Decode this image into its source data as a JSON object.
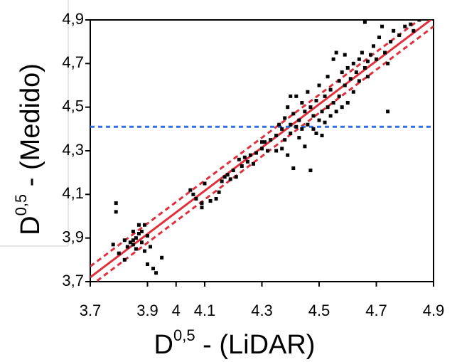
{
  "chart_data": {
    "type": "scatter",
    "xlabel": {
      "base": "D",
      "sup": "0,5",
      "rest": " - (LiDAR)"
    },
    "ylabel": {
      "base": "D",
      "sup": "0,5",
      "rest": " - (Medido)"
    },
    "xlim": [
      3.7,
      4.9
    ],
    "ylim": [
      3.7,
      4.9
    ],
    "xticks": [
      3.7,
      3.9,
      4,
      4.1,
      4.3,
      4.5,
      4.7,
      4.9
    ],
    "yticks": [
      {
        "value": 3.7,
        "label": "3,7"
      },
      {
        "value": 3.9,
        "label": "3,9"
      },
      {
        "value": 4.1,
        "label": "4,1"
      },
      {
        "value": 4.3,
        "label": "4,3"
      },
      {
        "value": 4.5,
        "label": "4,5"
      },
      {
        "value": 4.7,
        "label": "4,7"
      },
      {
        "value": 4.9,
        "label": "4,9"
      }
    ],
    "color": "#000000",
    "x": [
      3.79,
      3.79,
      3.78,
      3.8,
      3.82,
      3.83,
      3.84,
      3.85,
      3.85,
      3.86,
      3.86,
      3.87,
      3.88,
      3.88,
      3.89,
      3.89,
      3.9,
      3.9,
      3.91,
      3.92,
      3.93,
      3.85,
      3.95,
      3.82,
      3.87,
      4.05,
      4.06,
      4.07,
      4.09,
      4.09,
      4.1,
      4.12,
      4.14,
      4.15,
      4.16,
      4.17,
      4.18,
      4.19,
      4.2,
      4.21,
      4.22,
      4.23,
      4.24,
      4.25,
      4.26,
      4.27,
      4.28,
      4.3,
      4.31,
      4.32,
      4.33,
      4.35,
      4.36,
      4.37,
      4.37,
      4.38,
      4.38,
      4.39,
      4.39,
      4.4,
      4.4,
      4.41,
      4.41,
      4.42,
      4.42,
      4.43,
      4.43,
      4.44,
      4.44,
      4.45,
      4.45,
      4.46,
      4.46,
      4.47,
      4.47,
      4.48,
      4.48,
      4.49,
      4.49,
      4.5,
      4.5,
      4.51,
      4.51,
      4.52,
      4.52,
      4.53,
      4.53,
      4.54,
      4.54,
      4.55,
      4.55,
      4.56,
      4.56,
      4.57,
      4.57,
      4.58,
      4.58,
      4.59,
      4.59,
      4.6,
      4.6,
      4.61,
      4.62,
      4.62,
      4.63,
      4.64,
      4.64,
      4.65,
      4.66,
      4.67,
      4.67,
      4.68,
      4.69,
      4.7,
      4.71,
      4.72,
      4.73,
      4.74,
      4.74,
      4.75,
      4.76,
      4.78,
      4.8,
      4.82,
      4.83,
      4.85,
      4.66,
      4.4,
      4.35,
      4.3
    ],
    "values": [
      4.06,
      4.02,
      3.87,
      3.83,
      3.89,
      3.86,
      3.88,
      3.87,
      3.89,
      3.9,
      3.85,
      3.92,
      3.93,
      3.88,
      3.96,
      3.84,
      3.91,
      3.78,
      3.86,
      3.76,
      3.74,
      3.93,
      3.81,
      3.8,
      3.96,
      4.12,
      4.1,
      4.08,
      4.06,
      4.04,
      4.15,
      4.07,
      4.08,
      4.11,
      4.16,
      4.18,
      4.19,
      4.17,
      4.21,
      4.18,
      4.26,
      4.23,
      4.27,
      4.25,
      4.28,
      4.24,
      4.29,
      4.31,
      4.34,
      4.3,
      4.35,
      4.37,
      4.42,
      4.4,
      4.31,
      4.35,
      4.45,
      4.5,
      4.28,
      4.42,
      4.38,
      4.47,
      4.22,
      4.41,
      4.55,
      4.44,
      4.36,
      4.52,
      4.4,
      4.48,
      4.32,
      4.42,
      4.57,
      4.5,
      4.21,
      4.46,
      4.4,
      4.53,
      4.38,
      4.44,
      4.6,
      4.48,
      4.37,
      4.55,
      4.43,
      4.5,
      4.64,
      4.58,
      4.46,
      4.52,
      4.72,
      4.75,
      4.48,
      4.62,
      4.55,
      4.66,
      4.5,
      4.74,
      4.6,
      4.68,
      4.52,
      4.63,
      4.7,
      4.57,
      4.66,
      4.72,
      4.62,
      4.75,
      4.68,
      4.71,
      4.64,
      4.74,
      4.78,
      4.72,
      4.82,
      4.87,
      4.75,
      4.7,
      4.48,
      4.8,
      4.85,
      4.83,
      4.87,
      4.88,
      4.85,
      4.9,
      4.89,
      4.55,
      4.3,
      4.34
    ],
    "reference_lines": [
      {
        "x": [
          3.7,
          4.9
        ],
        "values": [
          3.72,
          4.91
        ],
        "color": "#e0303c",
        "style": "solid"
      },
      {
        "x": [
          3.7,
          4.9
        ],
        "values": [
          3.77,
          4.95
        ],
        "color": "#e0303c",
        "style": "dashed"
      },
      {
        "x": [
          3.7,
          4.9
        ],
        "values": [
          3.68,
          4.87
        ],
        "color": "#e0303c",
        "style": "dashed"
      }
    ],
    "hline": {
      "value": 4.41,
      "color": "#2f6fe8",
      "style": "dashed"
    }
  }
}
